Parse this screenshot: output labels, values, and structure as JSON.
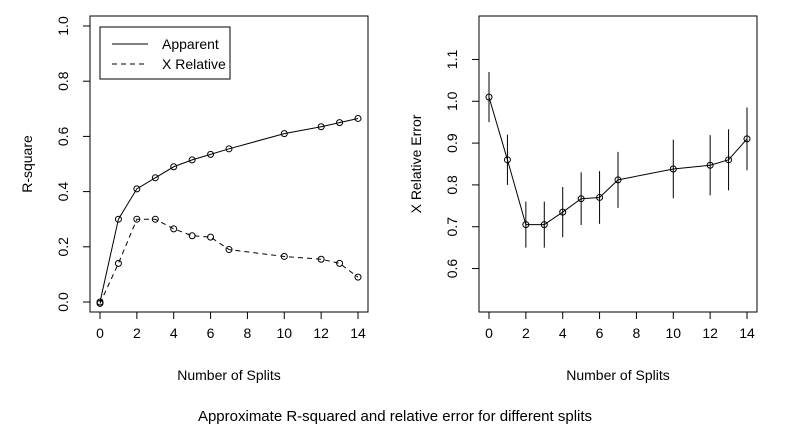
{
  "caption": "Approximate R-squared and relative error for different splits",
  "chart_data": [
    {
      "type": "line",
      "xlabel": "Number of Splits",
      "ylabel": "R-square",
      "xlim": [
        0,
        14
      ],
      "ylim": [
        0,
        1
      ],
      "x_ticks": [
        0,
        2,
        4,
        6,
        8,
        10,
        12,
        14
      ],
      "y_ticks": [
        0.0,
        0.2,
        0.4,
        0.6,
        0.8,
        1.0
      ],
      "y_tick_labels": [
        "0.0",
        "0.2",
        "0.4",
        "0.6",
        "0.8",
        "1.0"
      ],
      "grid": false,
      "legend_position": "top-left",
      "x": [
        0,
        1,
        2,
        3,
        4,
        5,
        6,
        7,
        10,
        12,
        13,
        14
      ],
      "series": [
        {
          "name": "Apparent",
          "line_style": "solid",
          "values": [
            0.0,
            0.3,
            0.41,
            0.45,
            0.49,
            0.515,
            0.535,
            0.555,
            0.61,
            0.635,
            0.65,
            0.665
          ]
        },
        {
          "name": "X Relative",
          "line_style": "dashed",
          "values": [
            -0.005,
            0.14,
            0.3,
            0.3,
            0.265,
            0.24,
            0.235,
            0.19,
            0.165,
            0.155,
            0.14,
            0.09
          ]
        }
      ]
    },
    {
      "type": "line",
      "xlabel": "Number of Splits",
      "ylabel": "X Relative Error",
      "xlim": [
        0,
        14
      ],
      "ylim": [
        0.52,
        1.18
      ],
      "x_ticks": [
        0,
        2,
        4,
        6,
        8,
        10,
        12,
        14
      ],
      "y_ticks": [
        0.6,
        0.7,
        0.8,
        0.9,
        1.0,
        1.1
      ],
      "y_tick_labels": [
        "0.6",
        "0.7",
        "0.8",
        "0.9",
        "1.0",
        "1.1"
      ],
      "grid": false,
      "x": [
        0,
        1,
        2,
        3,
        4,
        5,
        6,
        7,
        10,
        12,
        13,
        14
      ],
      "series": [
        {
          "line_style": "solid",
          "values": [
            1.01,
            0.86,
            0.705,
            0.705,
            0.735,
            0.767,
            0.77,
            0.812,
            0.838,
            0.847,
            0.86,
            0.91
          ],
          "error": [
            0.06,
            0.06,
            0.055,
            0.055,
            0.06,
            0.063,
            0.063,
            0.067,
            0.07,
            0.072,
            0.073,
            0.075
          ]
        }
      ]
    }
  ]
}
